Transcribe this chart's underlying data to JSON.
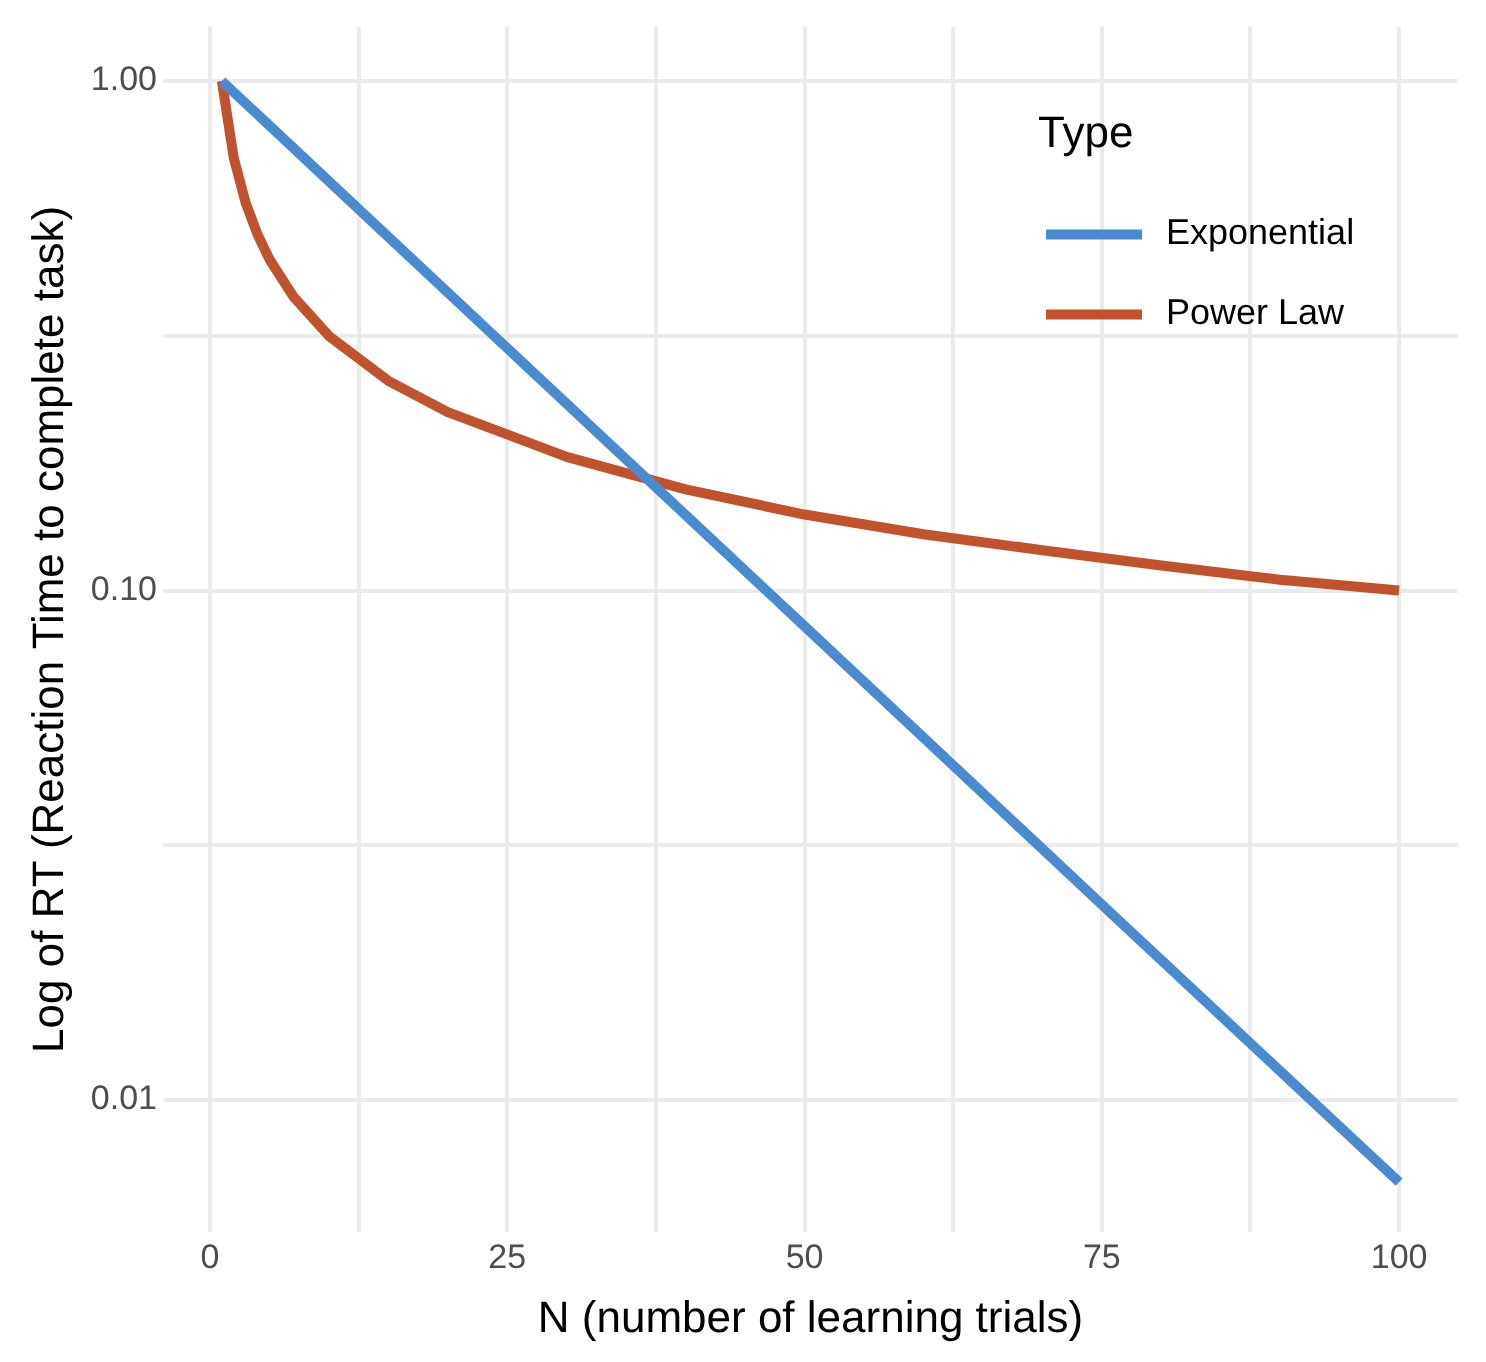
{
  "chart_data": {
    "type": "line",
    "xlabel": "N (number of learning trials)",
    "ylabel": "Log of RT (Reaction Time to complete task)",
    "legend_title": "Type",
    "legend": "top right",
    "grid": true,
    "log": "y",
    "marker": "none",
    "line_style": "solid",
    "xlim": [
      -3.95,
      104.95
    ],
    "xticks": [
      0,
      {
        "value": 12.5,
        "label": null
      },
      25,
      {
        "value": 37.5,
        "label": null
      },
      50,
      {
        "value": 62.5,
        "label": null
      },
      75,
      {
        "value": 87.5,
        "label": null
      },
      100
    ],
    "ylim": [
      0.0055,
      1.28
    ],
    "yticks": [
      {
        "value": 0.01,
        "label": "0.01"
      },
      {
        "value": 0.0316,
        "label": null
      },
      {
        "value": 0.1,
        "label": "0.10"
      },
      {
        "value": 0.316,
        "label": null
      },
      {
        "value": 1,
        "label": "1.00"
      }
    ],
    "series": [
      {
        "name": "Exponential",
        "color": "#4a8bd0",
        "x": [
          1,
          25,
          50,
          75,
          100
        ],
        "values": [
          1,
          0.299,
          0.0851,
          0.0242,
          0.0069
        ]
      },
      {
        "name": "Power Law",
        "color": "#c0522e",
        "x": [
          1,
          2,
          3,
          4,
          5,
          7,
          10,
          15,
          20,
          30,
          40,
          50,
          60,
          70,
          80,
          90,
          100
        ],
        "values": [
          1,
          0.707,
          0.577,
          0.5,
          0.447,
          0.378,
          0.316,
          0.258,
          0.224,
          0.183,
          0.158,
          0.141,
          0.129,
          0.12,
          0.112,
          0.105,
          0.1
        ]
      }
    ]
  }
}
